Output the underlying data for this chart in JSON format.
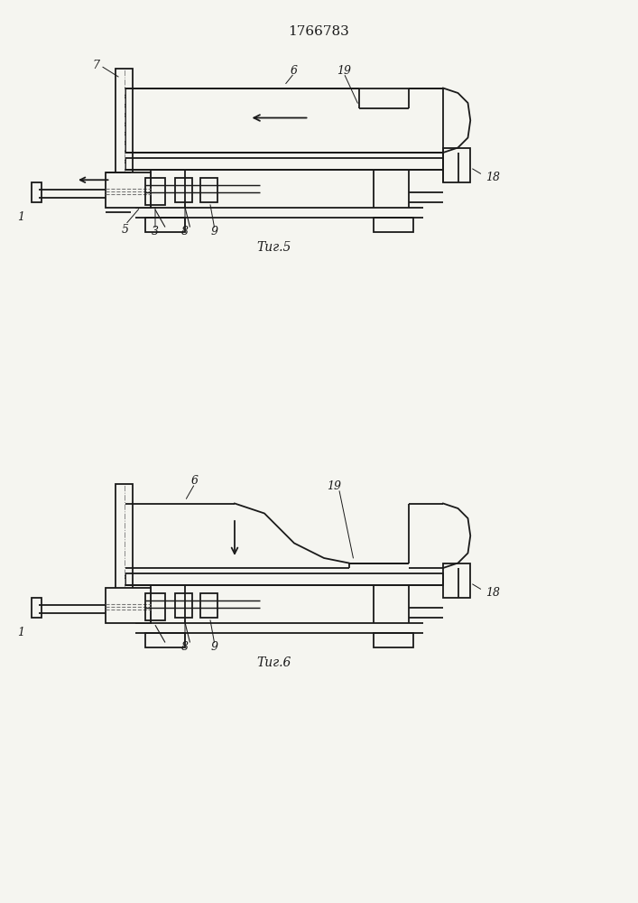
{
  "title": "1766783",
  "title_fontsize": 11,
  "fig1_label": "Τиг.5",
  "fig2_label": "Τиг.6",
  "bg_color": "#f5f5f0",
  "line_color": "#1a1a1a",
  "line_width": 1.3
}
